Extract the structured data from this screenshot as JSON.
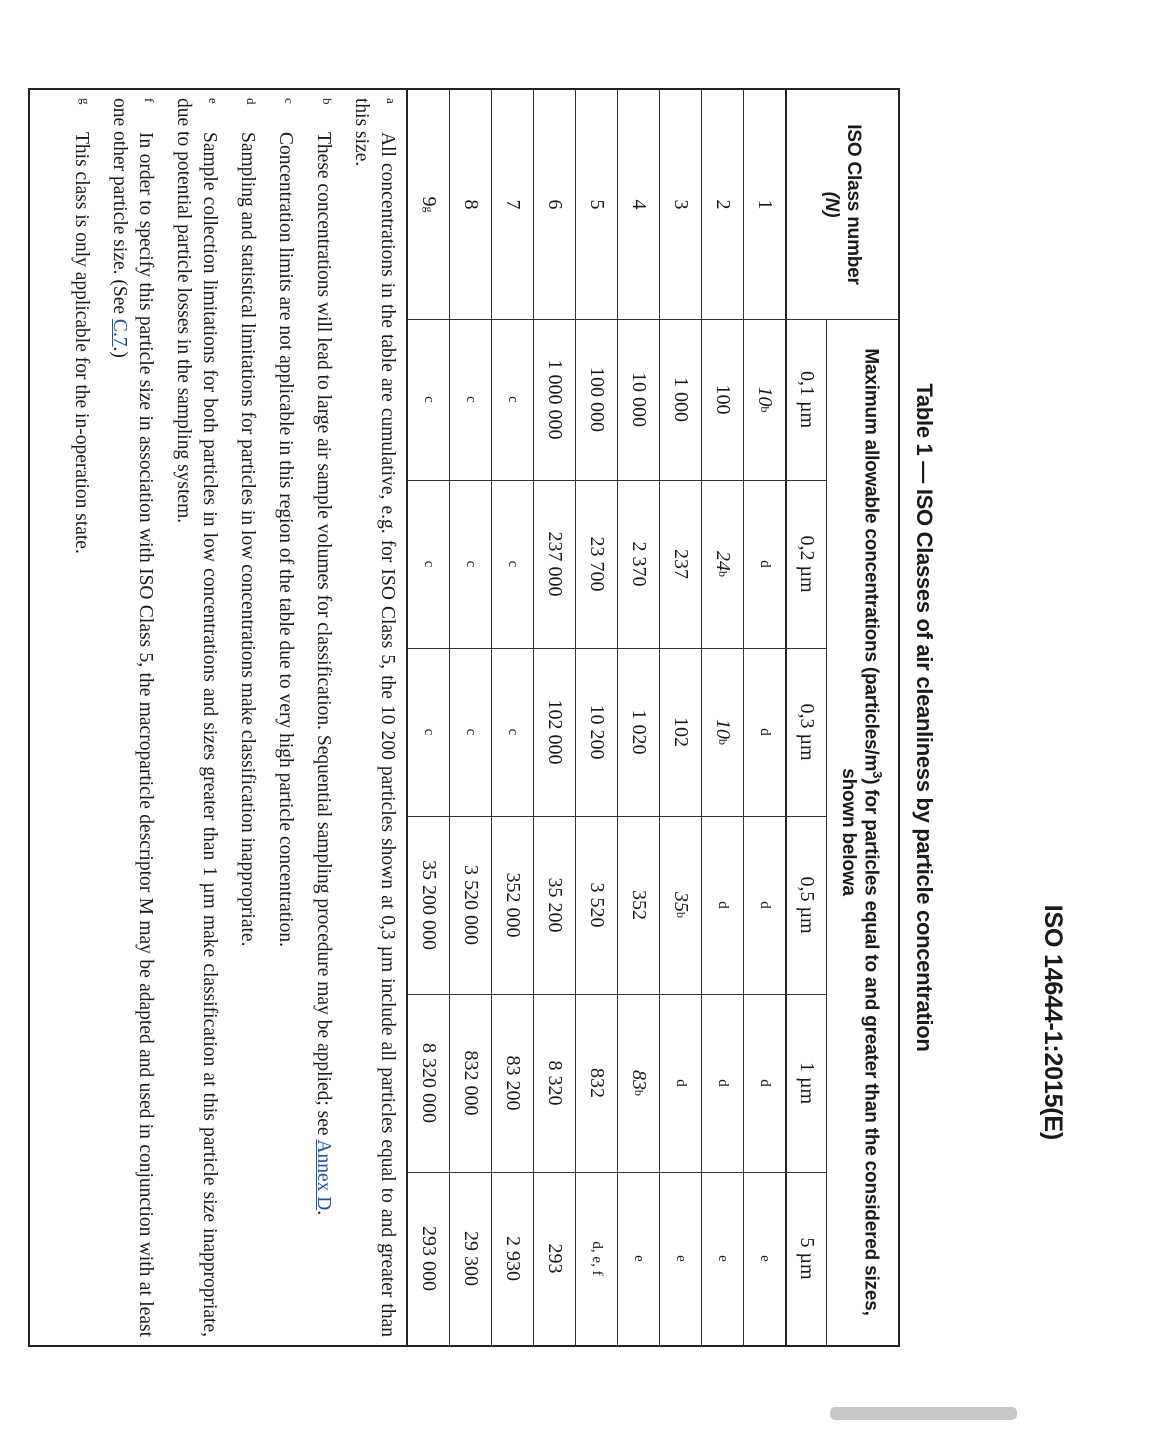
{
  "header": {
    "doc_id": "ISO 14644-1:2015(E)"
  },
  "title": "Table 1 — ISO Classes of air cleanliness by particle concentration",
  "table": {
    "class_header": {
      "line1": "ISO Class number",
      "line2": "(N)"
    },
    "concentration_header": {
      "before_sup": "Maximum allowable concentrations (particles/m",
      "sup": "3",
      "after_sup": ") for particles equal to and greater than the considered sizes, shown below",
      "note": "a"
    },
    "size_columns": [
      "0,1 µm",
      "0,2 µm",
      "0,3 µm",
      "0,5 µm",
      "1 µm",
      "5 µm"
    ],
    "rows": [
      {
        "class": "1",
        "class_sup": "",
        "values": [
          {
            "t": "10",
            "sup": "b",
            "i": true
          },
          {
            "t": "d"
          },
          {
            "t": "d"
          },
          {
            "t": "d"
          },
          {
            "t": "d"
          },
          {
            "t": "e"
          }
        ]
      },
      {
        "class": "2",
        "class_sup": "",
        "values": [
          {
            "t": "100"
          },
          {
            "t": "24",
            "sup": "b",
            "i": true
          },
          {
            "t": "10",
            "sup": "b",
            "i": true
          },
          {
            "t": "d"
          },
          {
            "t": "d"
          },
          {
            "t": "e"
          }
        ]
      },
      {
        "class": "3",
        "class_sup": "",
        "values": [
          {
            "t": "1 000"
          },
          {
            "t": "237"
          },
          {
            "t": "102"
          },
          {
            "t": "35",
            "sup": "b",
            "i": true
          },
          {
            "t": "d"
          },
          {
            "t": "e"
          }
        ]
      },
      {
        "class": "4",
        "class_sup": "",
        "values": [
          {
            "t": "10 000"
          },
          {
            "t": "2 370"
          },
          {
            "t": "1 020"
          },
          {
            "t": "352"
          },
          {
            "t": "83",
            "sup": "b",
            "i": true
          },
          {
            "t": "e"
          }
        ]
      },
      {
        "class": "5",
        "class_sup": "",
        "values": [
          {
            "t": "100 000"
          },
          {
            "t": "23 700"
          },
          {
            "t": "10 200"
          },
          {
            "t": "3 520"
          },
          {
            "t": "832"
          },
          {
            "t": "d, e, f"
          }
        ]
      },
      {
        "class": "6",
        "class_sup": "",
        "values": [
          {
            "t": "1 000 000"
          },
          {
            "t": "237 000"
          },
          {
            "t": "102 000"
          },
          {
            "t": "35 200"
          },
          {
            "t": "8 320"
          },
          {
            "t": "293"
          }
        ]
      },
      {
        "class": "7",
        "class_sup": "",
        "values": [
          {
            "t": "c"
          },
          {
            "t": "c"
          },
          {
            "t": "c"
          },
          {
            "t": "352 000"
          },
          {
            "t": "83 200"
          },
          {
            "t": "2 930"
          }
        ]
      },
      {
        "class": "8",
        "class_sup": "",
        "values": [
          {
            "t": "c"
          },
          {
            "t": "c"
          },
          {
            "t": "c"
          },
          {
            "t": "3 520 000"
          },
          {
            "t": "832 000"
          },
          {
            "t": "29 300"
          }
        ]
      },
      {
        "class": "9",
        "class_sup": "g",
        "values": [
          {
            "t": "c"
          },
          {
            "t": "c"
          },
          {
            "t": "c"
          },
          {
            "t": "35 200 000"
          },
          {
            "t": "8 320 000"
          },
          {
            "t": "293 000"
          }
        ]
      }
    ],
    "footnotes": [
      {
        "label": "a",
        "text": "All concentrations in the table are cumulative, e.g. for ISO Class 5, the 10 200 particles shown at 0,3 µm include all particles equal to and greater than this size.",
        "link": "",
        "after": ""
      },
      {
        "label": "b",
        "text": "These concentrations will lead to large air sample volumes for classification. Sequential sampling procedure may be applied; see ",
        "link": "Annex D",
        "after": "."
      },
      {
        "label": "c",
        "text": "Concentration limits are not applicable in this region of the table due to very high particle concentration.",
        "link": "",
        "after": ""
      },
      {
        "label": "d",
        "text": "Sampling and statistical limitations for particles in low concentrations make classification inappropriate.",
        "link": "",
        "after": ""
      },
      {
        "label": "e",
        "text": "Sample collection limitations for both particles in low concentrations and sizes greater than 1 µm make classification at this particle size inappropriate, due to potential particle losses in the sampling system.",
        "link": "",
        "after": ""
      },
      {
        "label": "f",
        "text": "In order to specify this particle size in association with ISO Class 5, the macroparticle descriptor M may be adapted and used in conjunction with at least one other particle size. (See ",
        "link": "C.7",
        "after": ".)"
      },
      {
        "label": "g",
        "text": "This class is only applicable for the in-operation state.",
        "link": "",
        "after": ""
      }
    ]
  },
  "colors": {
    "link": "#1a4fc4",
    "rule": "#222222",
    "scrollbar": "#c8c8c8"
  }
}
